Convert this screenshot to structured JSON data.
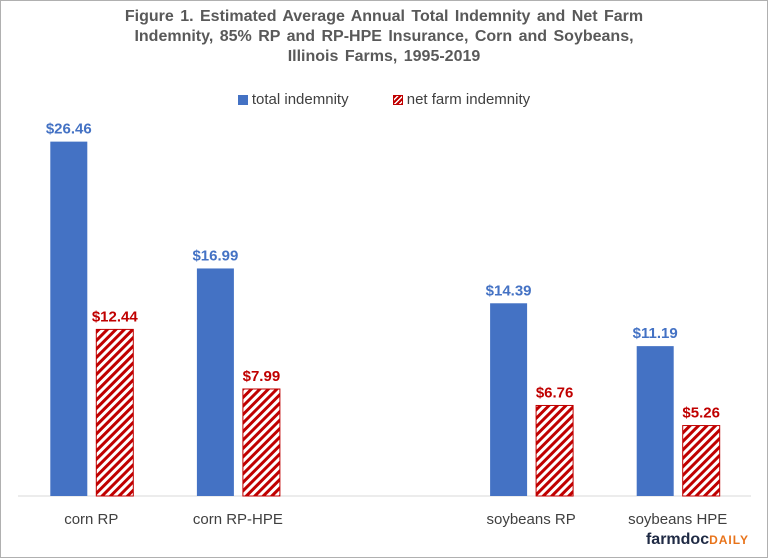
{
  "chart_data": {
    "type": "bar",
    "title": "Figure 1.  Estimated Average Annual Total Indemnity and Net Farm Indemnity, 85% RP and RP-HPE Insurance, Corn and Soybeans, Illinois Farms, 1995-2019",
    "title_lines": [
      "Figure 1.  Estimated Average Annual Total Indemnity and Net Farm",
      "Indemnity, 85% RP and RP-HPE Insurance, Corn and Soybeans,",
      "Illinois Farms, 1995-2019"
    ],
    "categories": [
      "corn RP",
      "corn RP-HPE",
      "",
      "soybeans RP",
      "soybeans HPE"
    ],
    "series": [
      {
        "name": "total indemnity",
        "values": [
          26.46,
          16.99,
          null,
          14.39,
          11.19
        ],
        "labels": [
          "$26.46",
          "$16.99",
          "",
          "$14.39",
          "$11.19"
        ],
        "color": "#4472C4",
        "pattern": "solid"
      },
      {
        "name": "net farm indemnity",
        "values": [
          12.44,
          7.99,
          null,
          6.76,
          5.26
        ],
        "labels": [
          "$12.44",
          "$7.99",
          "",
          "$6.76",
          "$5.26"
        ],
        "color": "#C00000",
        "pattern": "diagonal-hatch"
      }
    ],
    "xlabel": "",
    "ylabel": "",
    "ylim": [
      0,
      28
    ],
    "grid": false,
    "y_axis_shown": false,
    "legend": "top-center"
  },
  "logo": {
    "main": "farmdoc",
    "accent": "DAILY"
  }
}
